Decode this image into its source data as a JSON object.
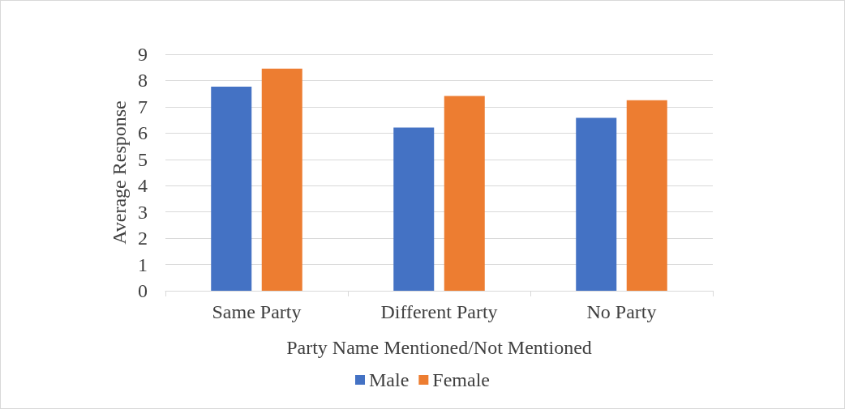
{
  "chart_data": {
    "type": "bar",
    "xlabel": "Party Name Mentioned/Not Mentioned",
    "ylabel": "Average Response",
    "categories": [
      "Same Party",
      "Different Party",
      "No Party"
    ],
    "series": [
      {
        "name": "Male",
        "color": "#4472c4",
        "values": [
          7.77,
          6.21,
          6.58
        ]
      },
      {
        "name": "Female",
        "color": "#ed7d31",
        "values": [
          8.45,
          7.41,
          7.25
        ]
      }
    ],
    "ylim": [
      0,
      9
    ],
    "yticks": [
      0,
      1,
      2,
      3,
      4,
      5,
      6,
      7,
      8,
      9
    ],
    "grid": "y",
    "legend": "bottom"
  }
}
